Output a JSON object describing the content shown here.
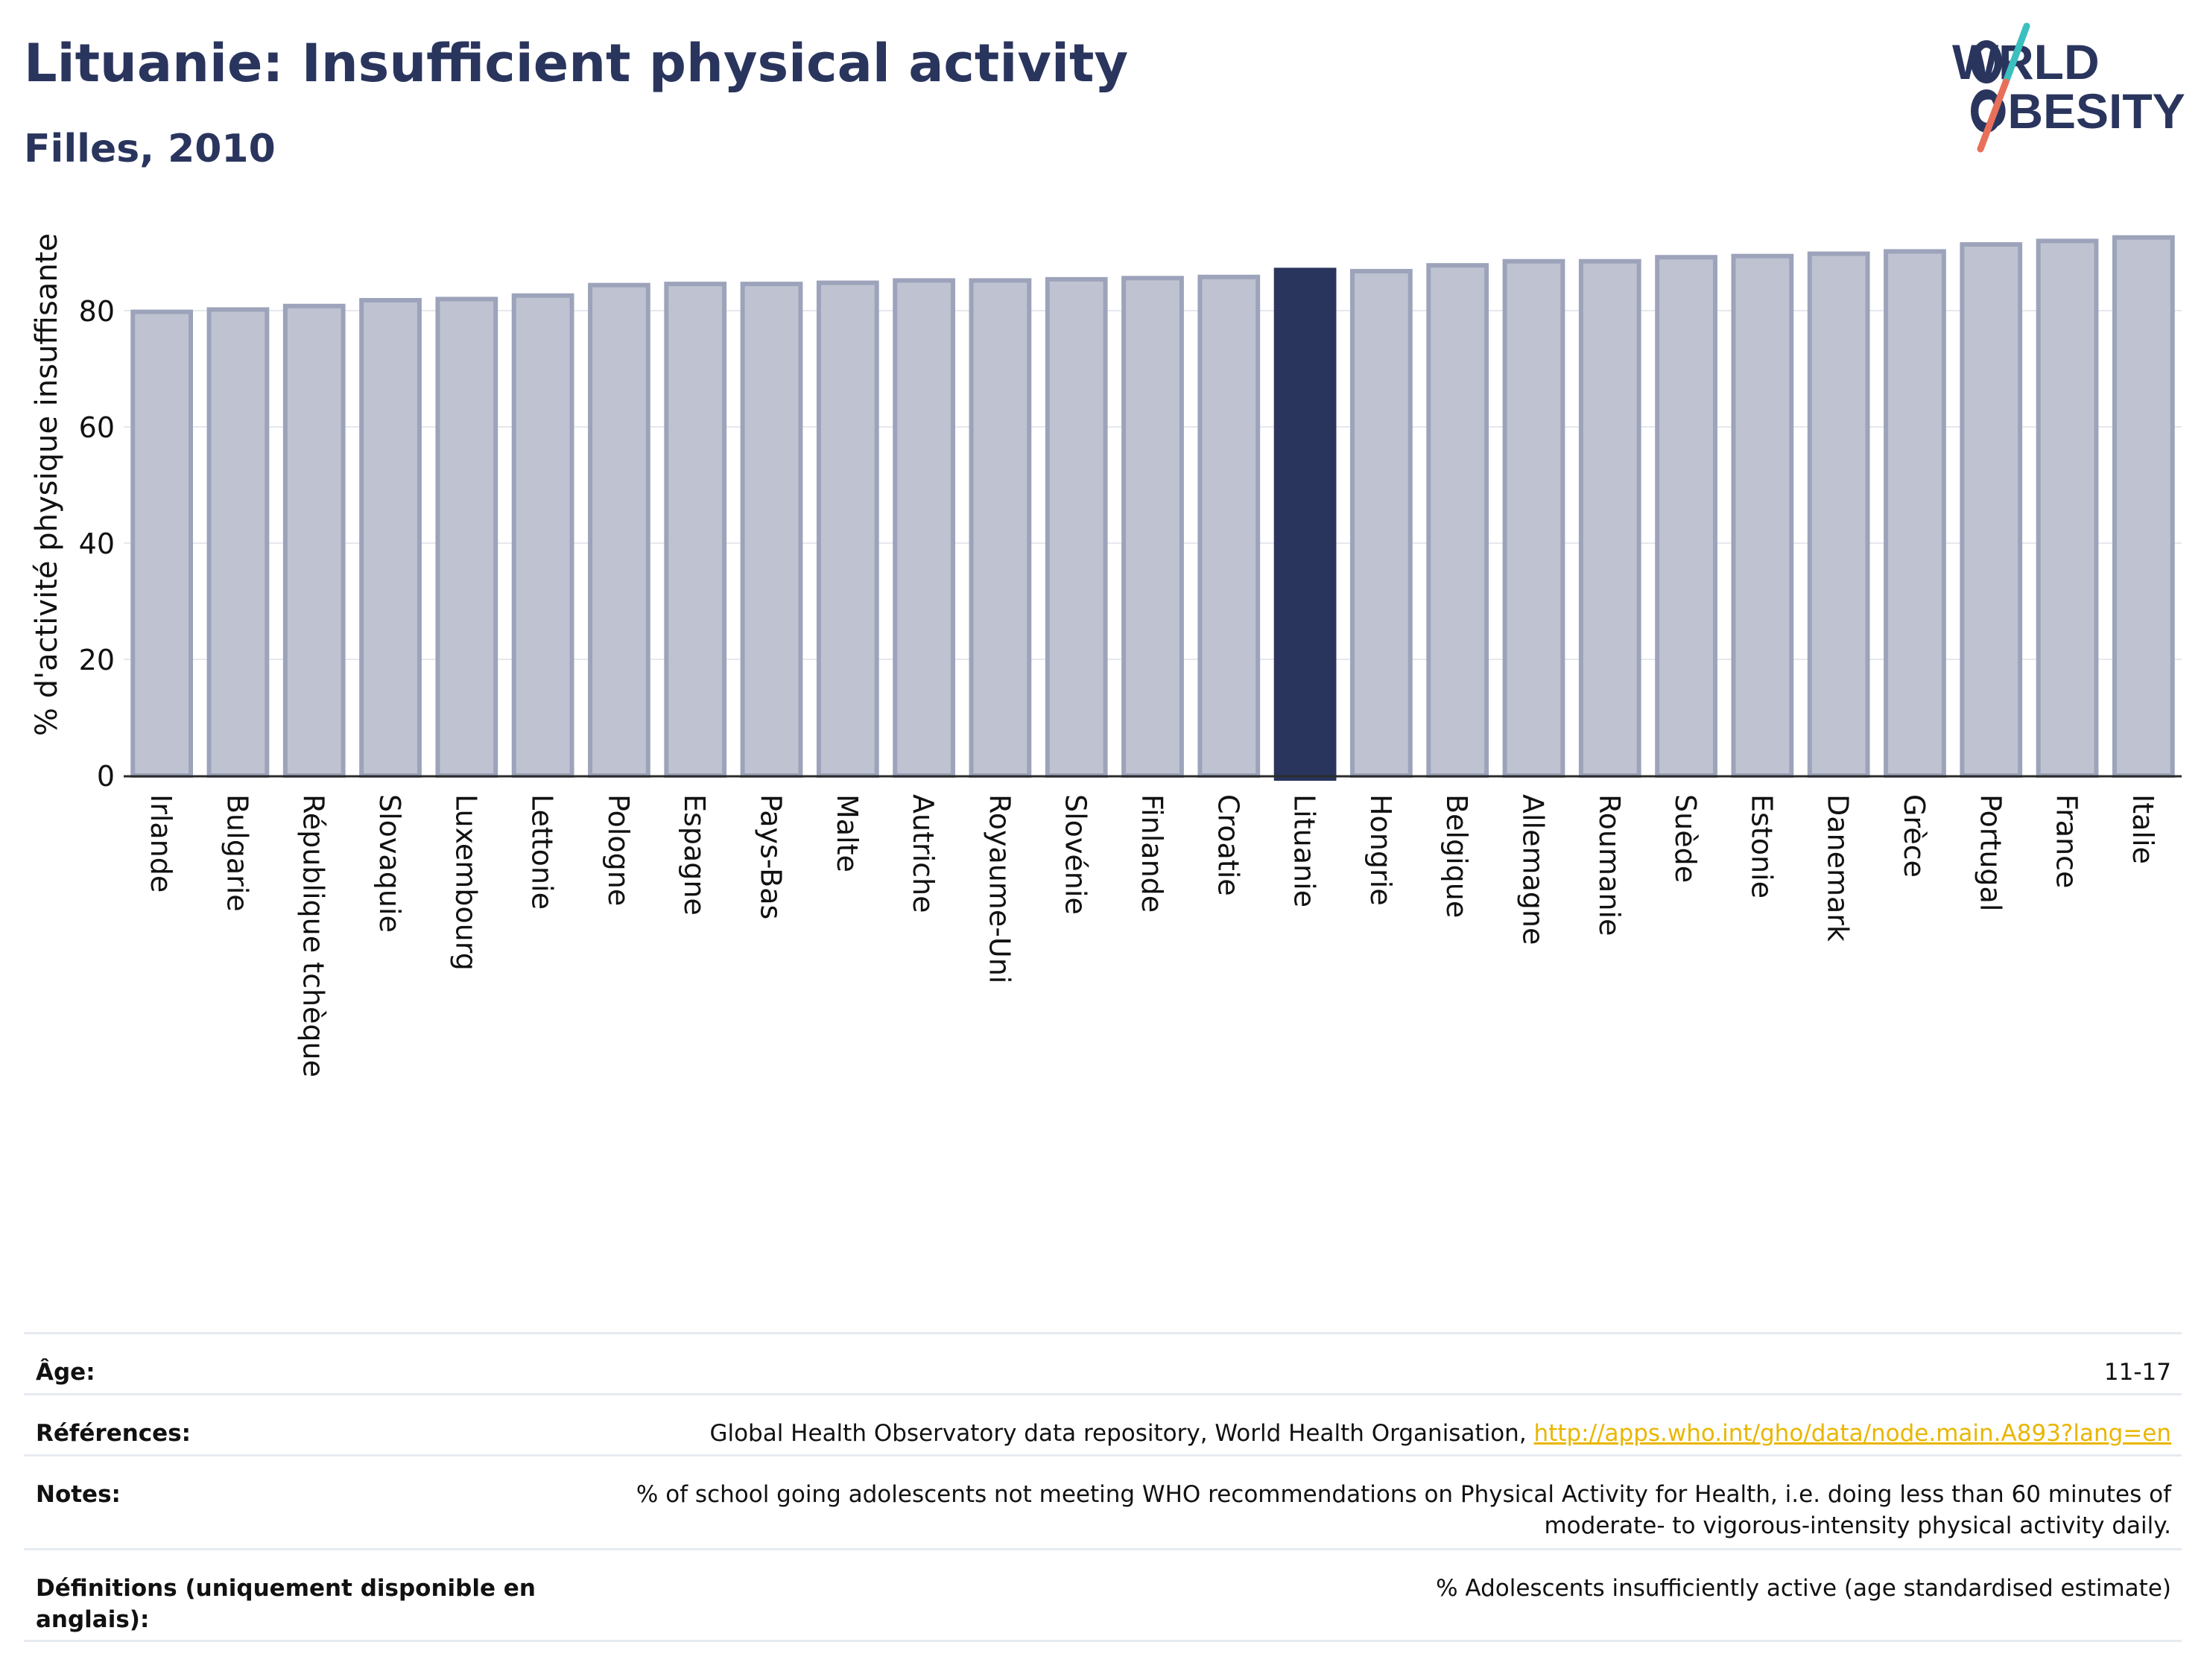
{
  "header": {
    "title": "Lituanie: Insufficient physical activity",
    "subtitle": "Filles, 2010"
  },
  "logo": {
    "line1": "WORLD",
    "line2": "OBESITY",
    "accent_teal": "#3bbfbf",
    "accent_coral": "#e8705a"
  },
  "colors": {
    "bar": "#bfc3d1",
    "bar_edge": "#9ca3ba",
    "highlight": "#2a355e",
    "text": "#2a355e",
    "link": "#e9b600"
  },
  "chart_data": {
    "type": "bar",
    "ylabel": "% d'activité physique insuffisante",
    "ylim": [
      0,
      95
    ],
    "yticks": [
      0,
      20,
      40,
      60,
      80
    ],
    "grid": true,
    "highlight": "Lituanie",
    "categories": [
      "Irlande",
      "Bulgarie",
      "République tchèque",
      "Slovaquie",
      "Luxembourg",
      "Lettonie",
      "Pologne",
      "Espagne",
      "Pays-Bas",
      "Malte",
      "Autriche",
      "Royaume-Uni",
      "Slovénie",
      "Finlande",
      "Croatie",
      "Lituanie",
      "Hongrie",
      "Belgique",
      "Allemagne",
      "Roumanie",
      "Suède",
      "Estonie",
      "Danemark",
      "Grèce",
      "Portugal",
      "France",
      "Italie"
    ],
    "values": [
      79.8,
      80.2,
      80.8,
      81.8,
      82.0,
      82.6,
      84.4,
      84.6,
      84.6,
      84.8,
      85.2,
      85.2,
      85.4,
      85.6,
      85.8,
      87.0,
      86.8,
      87.8,
      88.5,
      88.5,
      89.2,
      89.4,
      89.8,
      90.2,
      91.4,
      92.0,
      92.6
    ]
  },
  "meta": {
    "age_label": "Âge:",
    "age_value": "11-17",
    "refs_label": "Références:",
    "refs_text": "Global Health Observatory data repository, World Health Organisation, ",
    "refs_link": "http://apps.who.int/gho/data/node.main.A893?lang=en",
    "notes_label": "Notes:",
    "notes_value": "% of school going adolescents not meeting WHO recommendations on Physical Activity for Health, i.e. doing less than 60 minutes of moderate- to vigorous-intensity physical activity daily.",
    "defs_label": "Définitions (uniquement disponible en anglais):",
    "defs_value": "% Adolescents insufficiently active (age standardised estimate)"
  }
}
